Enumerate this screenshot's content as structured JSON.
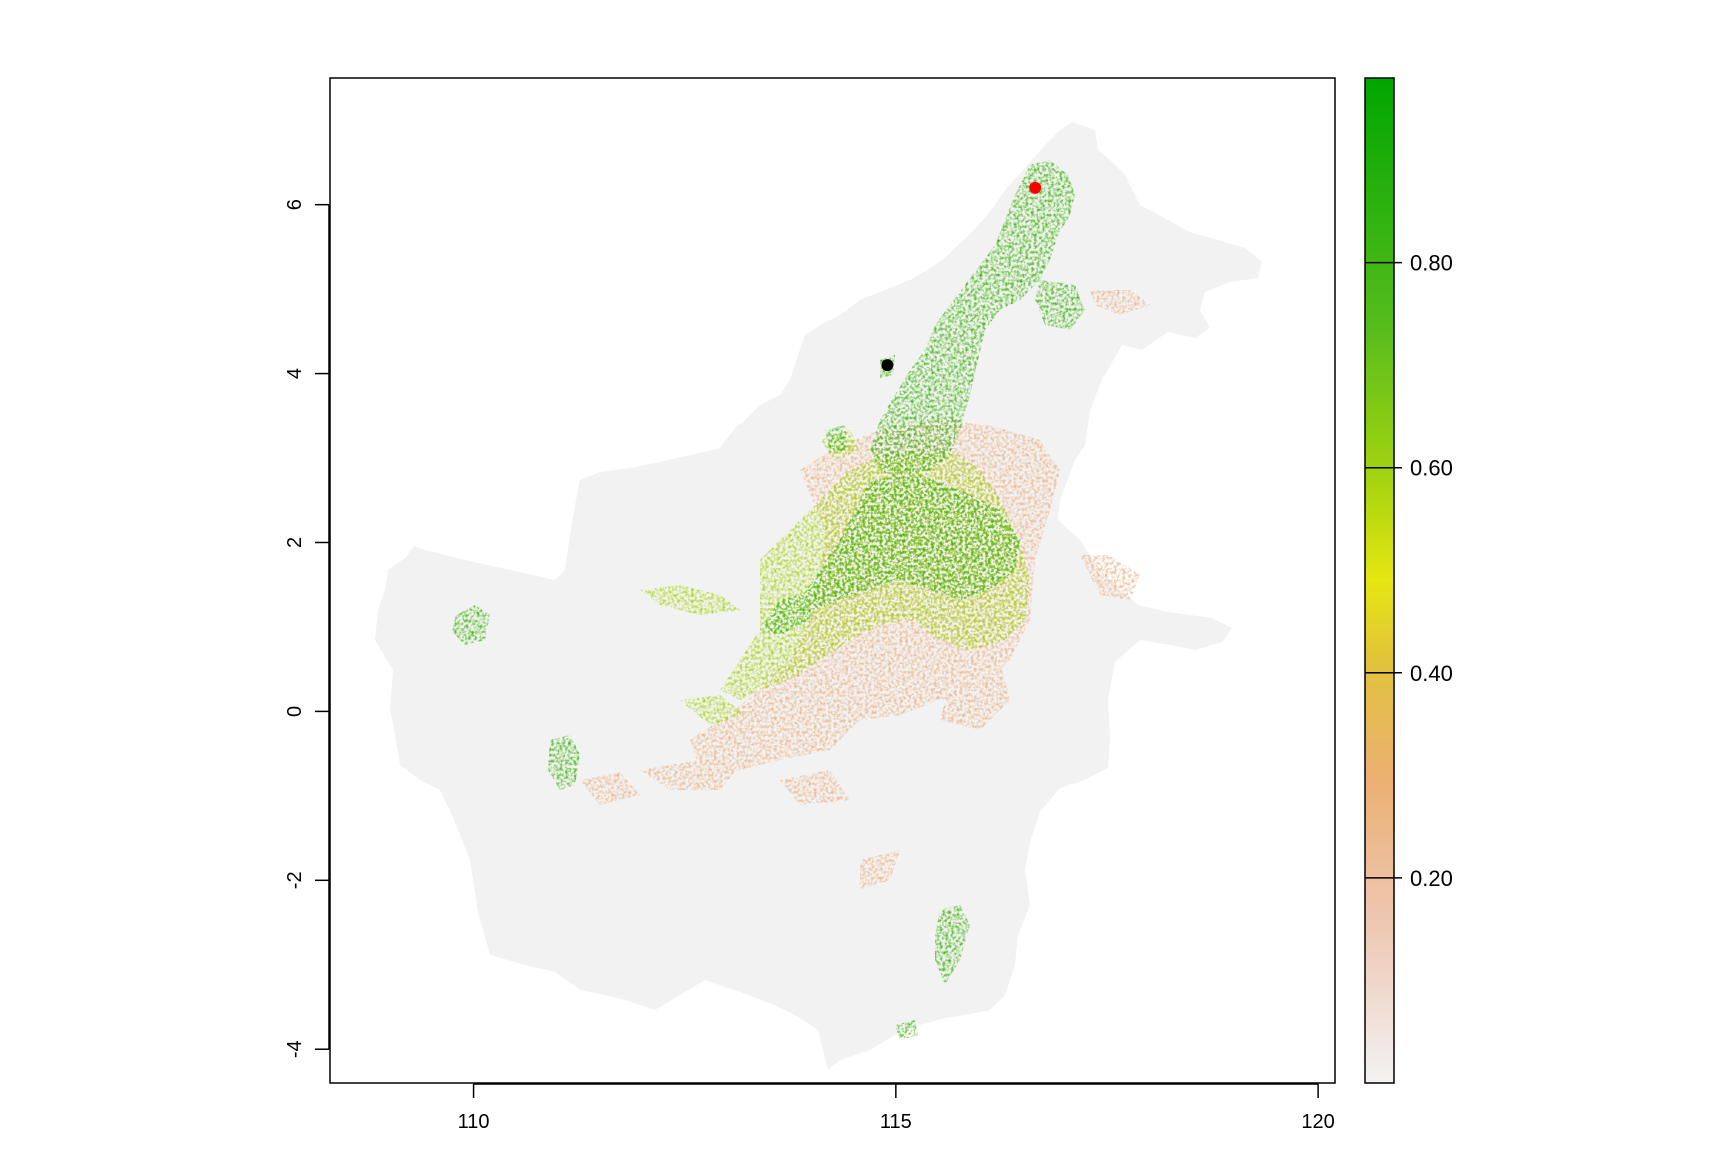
{
  "chart_data": {
    "type": "heatmap",
    "title": "",
    "xlabel": "",
    "ylabel": "",
    "xlim": [
      108.3,
      120.2
    ],
    "ylim": [
      -4.4,
      7.5
    ],
    "x_ticks": [
      {
        "value": 110,
        "label": "110"
      },
      {
        "value": 115,
        "label": "115"
      },
      {
        "value": 120,
        "label": "120"
      }
    ],
    "y_ticks": [
      {
        "value": -4,
        "label": "-4"
      },
      {
        "value": -2,
        "label": "-2"
      },
      {
        "value": 0,
        "label": "0"
      },
      {
        "value": 2,
        "label": "2"
      },
      {
        "value": 4,
        "label": "4"
      },
      {
        "value": 6,
        "label": "6"
      }
    ],
    "legend": {
      "placement": "right",
      "range": [
        0.0,
        0.98
      ],
      "ticks": [
        {
          "value": 0.2,
          "label": "0.20"
        },
        {
          "value": 0.4,
          "label": "0.40"
        },
        {
          "value": 0.6,
          "label": "0.60"
        },
        {
          "value": 0.8,
          "label": "0.80"
        }
      ],
      "color_stops": [
        {
          "value": 0.0,
          "color": "#f2f2f2"
        },
        {
          "value": 0.15,
          "color": "#efc9b6"
        },
        {
          "value": 0.3,
          "color": "#ebb074"
        },
        {
          "value": 0.42,
          "color": "#e2c33a"
        },
        {
          "value": 0.5,
          "color": "#e6e612"
        },
        {
          "value": 0.6,
          "color": "#a6d40f"
        },
        {
          "value": 0.75,
          "color": "#58bd1c"
        },
        {
          "value": 0.98,
          "color": "#00a600"
        }
      ]
    },
    "points": [
      {
        "name": "black-point",
        "x": 114.9,
        "y": 4.1,
        "color": "#000000"
      },
      {
        "name": "red-point",
        "x": 116.65,
        "y": 6.2,
        "color": "#ff0000"
      }
    ],
    "colors": {
      "landmass": "#f2f2f2",
      "suitability_low": "#ebb48a",
      "suitability_mid": "#a6d40f",
      "suitability_high": "#2fae00"
    }
  }
}
